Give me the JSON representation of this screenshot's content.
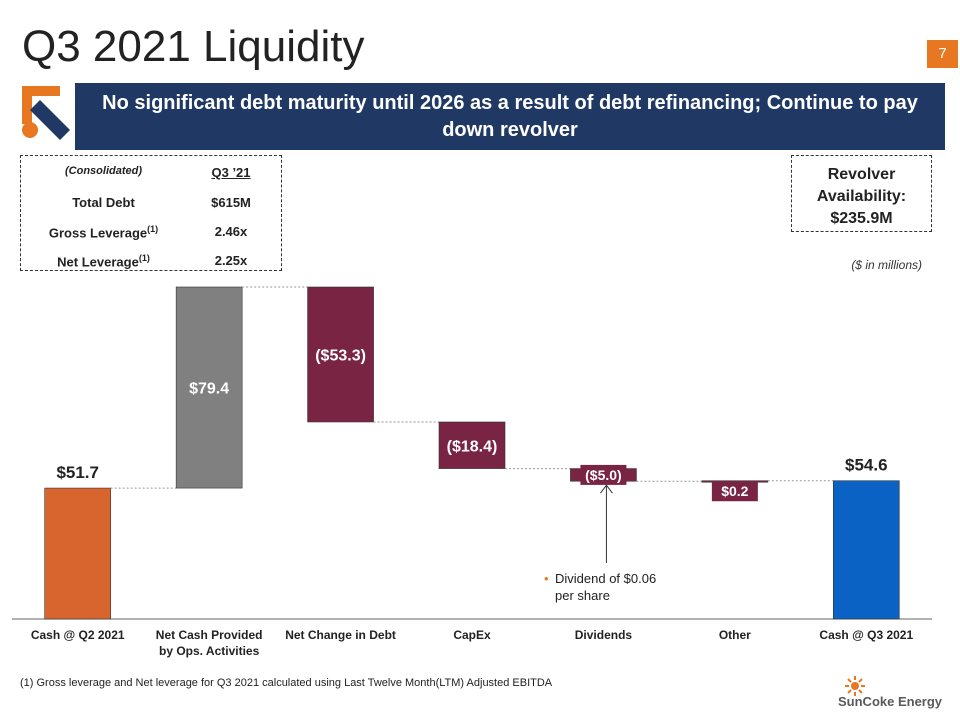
{
  "page": {
    "title": "Q3 2021 Liquidity",
    "page_number": "7",
    "banner": "No significant debt maturity until 2026 as a result of debt refinancing; Continue to pay down revolver",
    "summary_table": {
      "header": [
        "(Consolidated)",
        "Q3 ’21"
      ],
      "rows": [
        {
          "label": "Total Debt",
          "value": "$615M"
        },
        {
          "label": "Gross Leverage",
          "note": "(1)",
          "value": "2.46x"
        },
        {
          "label": "Net Leverage",
          "note": "(1)",
          "value": "2.25x"
        }
      ]
    },
    "revolver": {
      "label": "Revolver Availability:",
      "value": "$235.9M"
    },
    "units": "($ in millions)",
    "footnote": "(1)  Gross leverage and Net leverage for Q3 2021 calculated using Last Twelve Month(LTM) Adjusted EBITDA",
    "logo": "SunCoke Energy"
  },
  "chart_data": {
    "type": "waterfall",
    "categories": [
      "Cash @ Q2 2021",
      "Net Cash Provided by Ops. Activities",
      "Net Change in Debt",
      "CapEx",
      "Dividends",
      "Other",
      "Cash @ Q3 2021"
    ],
    "values": [
      51.7,
      79.4,
      -53.3,
      -18.4,
      -5.0,
      0.2,
      54.6
    ],
    "value_labels": [
      "$51.7",
      "$79.4",
      "($53.3)",
      "($18.4)",
      "($5.0)",
      "$0.2",
      "$54.6"
    ],
    "totals": [
      true,
      false,
      false,
      false,
      false,
      false,
      true
    ],
    "colors": [
      "#d8652e",
      "#808080",
      "#7a2444",
      "#7a2444",
      "#7a2444",
      "#7a2444",
      "#0a62c4"
    ],
    "annotation": "Dividend of $0.06 per share"
  }
}
